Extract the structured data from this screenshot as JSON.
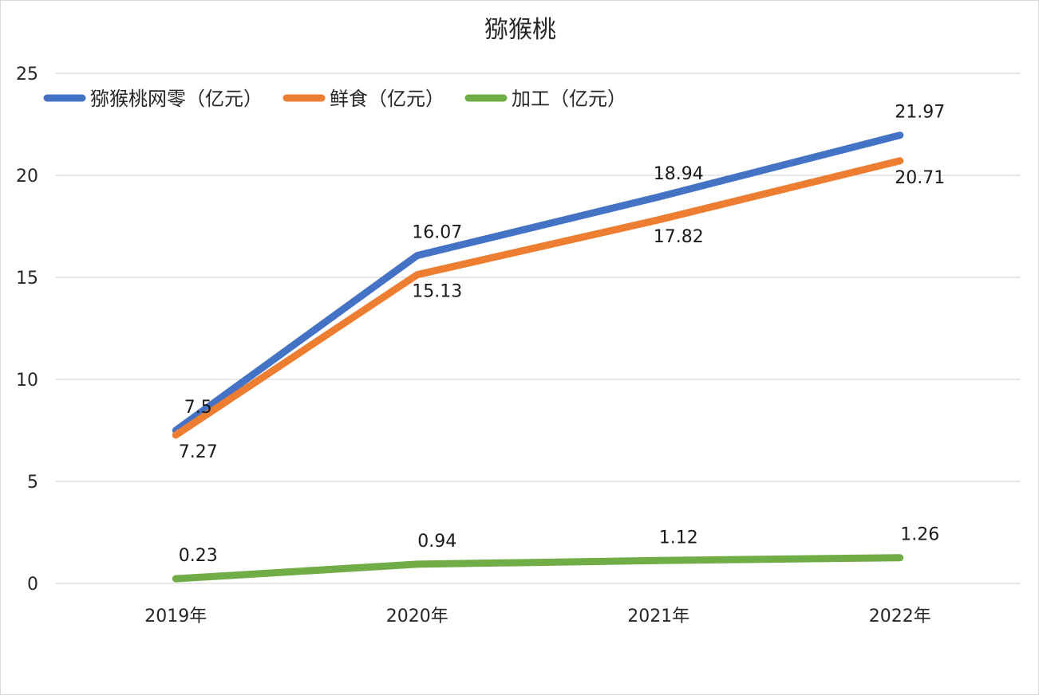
{
  "chart_data": {
    "type": "line",
    "title": "猕猴桃",
    "categories": [
      "2019年",
      "2020年",
      "2021年",
      "2022年"
    ],
    "ylim": [
      0,
      25
    ],
    "yticks": [
      "0",
      "5",
      "10",
      "15",
      "20",
      "25"
    ],
    "grid": true,
    "legend_position": "top-left",
    "series": [
      {
        "name": "猕猴桃网零（亿元）",
        "color": "#4472C4",
        "values": [
          7.5,
          16.07,
          18.94,
          21.97
        ],
        "labels": [
          "7.5",
          "16.07",
          "18.94",
          "21.97"
        ],
        "label_side": "above"
      },
      {
        "name": "鲜食（亿元）",
        "color": "#ED7D31",
        "values": [
          7.27,
          15.13,
          17.82,
          20.71
        ],
        "labels": [
          "7.27",
          "15.13",
          "17.82",
          "20.71"
        ],
        "label_side": "below"
      },
      {
        "name": "加工（亿元）",
        "color": "#70AD47",
        "values": [
          0.23,
          0.94,
          1.12,
          1.26
        ],
        "labels": [
          "0.23",
          "0.94",
          "1.12",
          "1.26"
        ],
        "label_side": "above"
      }
    ]
  }
}
